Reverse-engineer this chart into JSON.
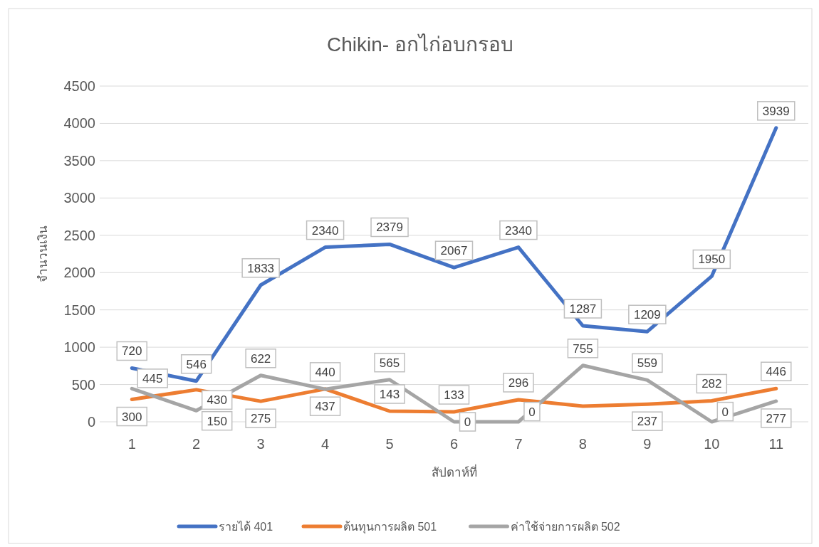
{
  "chart_data": {
    "type": "line",
    "title": "Chikin- อกไก่อบกรอบ",
    "xlabel": "สัปดาห์ที่",
    "ylabel": "จำนวนเงิน",
    "categories": [
      "1",
      "2",
      "3",
      "4",
      "5",
      "6",
      "7",
      "8",
      "9",
      "10",
      "11"
    ],
    "series": [
      {
        "name": "รายได้ 401",
        "color": "#4472c4",
        "values": [
          720,
          546,
          1833,
          2340,
          2379,
          2067,
          2340,
          1287,
          1209,
          1950,
          3939
        ]
      },
      {
        "name": "ต้นทุนการผลิต 501",
        "color": "#ed7d31",
        "values": [
          300,
          430,
          275,
          440,
          143,
          133,
          296,
          210,
          237,
          282,
          446
        ],
        "value_labels": [
          "300",
          "430",
          "275",
          "440",
          "143",
          "133",
          "296",
          null,
          "237",
          "282",
          "446"
        ]
      },
      {
        "name": "ค่าใช้จ่ายการผลิต 502",
        "color": "#a5a5a5",
        "values": [
          445,
          150,
          622,
          437,
          565,
          0,
          0,
          755,
          559,
          0,
          277
        ]
      }
    ],
    "ylim": [
      0,
      4500
    ],
    "yticks": [
      0,
      500,
      1000,
      1500,
      2000,
      2500,
      3000,
      3500,
      4000,
      4500
    ],
    "grid": "y",
    "legend": "bottom",
    "marker": "none",
    "line_style": "solid",
    "data_labels": true
  }
}
